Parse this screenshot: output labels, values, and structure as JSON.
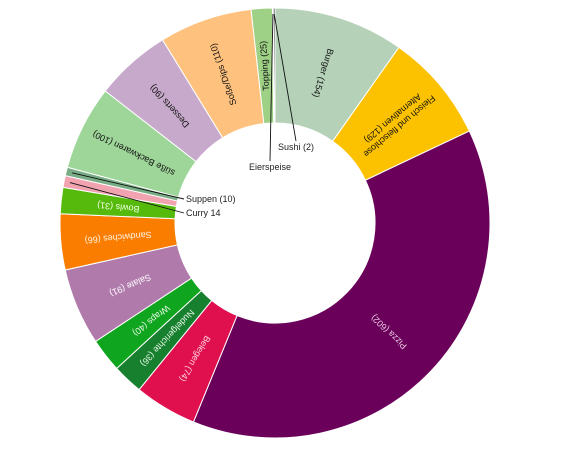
{
  "chart_data": {
    "type": "pie",
    "variant": "donut",
    "start": "top",
    "direction": "clockwise",
    "legend": "none",
    "title": "",
    "slices": [
      {
        "label": "Burger (154)",
        "name": "Burger",
        "value": 154,
        "color": "#b5d2b8",
        "text_color": "#111111",
        "label_style": "inside"
      },
      {
        "label": "Fleisch und fleischlose Alternativen (129)",
        "name": "Fleisch und fleischlose Alternativen",
        "value": 129,
        "color": "#fcc200",
        "text_color": "#111111",
        "label_style": "inside"
      },
      {
        "label": "Pizza (602)",
        "name": "Pizza",
        "value": 602,
        "color": "#6a005a",
        "text_color": "#e9c8e2",
        "label_style": "inside"
      },
      {
        "label": "Belegen (74)",
        "name": "Belegen",
        "value": 74,
        "color": "#e0104f",
        "text_color": "#ffd3de",
        "label_style": "inside"
      },
      {
        "label": "Nudelgerichte (36)",
        "name": "Nudelgerichte",
        "value": 36,
        "color": "#17802f",
        "text_color": "#e4f5e4",
        "label_style": "inside"
      },
      {
        "label": "Wraps (40)",
        "name": "Wraps",
        "value": 40,
        "color": "#10a51e",
        "text_color": "#e8f8e8",
        "label_style": "inside"
      },
      {
        "label": "Salate (91)",
        "name": "Salate",
        "value": 91,
        "color": "#b07aab",
        "text_color": "#ffffff",
        "label_style": "inside"
      },
      {
        "label": "Sandwiches (66)",
        "name": "Sandwiches",
        "value": 66,
        "color": "#fa7d00",
        "text_color": "#fff3e2",
        "label_style": "inside"
      },
      {
        "label": "Bowls (31)",
        "name": "Bowls",
        "value": 31,
        "color": "#56ba0c",
        "text_color": "#f2ffe5",
        "label_style": "inside"
      },
      {
        "label": "Curry 14",
        "name": "Curry",
        "value": 14,
        "color": "#f2a3b0",
        "text_color": "#222222",
        "label_style": "callout"
      },
      {
        "label": "Suppen (10)",
        "name": "Suppen",
        "value": 10,
        "color": "#79ad86",
        "text_color": "#222222",
        "label_style": "callout"
      },
      {
        "label": "süße Backwaren (100)",
        "name": "süße Backwaren",
        "value": 100,
        "color": "#9ed699",
        "text_color": "#111111",
        "label_style": "inside"
      },
      {
        "label": "Desserts (90)",
        "name": "Desserts",
        "value": 90,
        "color": "#c7a9cb",
        "text_color": "#111111",
        "label_style": "inside"
      },
      {
        "label": "Soße/Dips (110)",
        "name": "Soße/Dips",
        "value": 110,
        "color": "#ffc27e",
        "text_color": "#111111",
        "label_style": "inside"
      },
      {
        "label": "Topping (25)",
        "name": "Topping",
        "value": 25,
        "color": "#9ed085",
        "text_color": "#111111",
        "label_style": "inside"
      },
      {
        "label": "Eierspeise",
        "name": "Eierspeise",
        "value": 1,
        "color": "#2a2a2a",
        "text_color": "#222222",
        "label_style": "callout"
      },
      {
        "label": "Sushi (2)",
        "name": "Sushi",
        "value": 2,
        "color": "#3a3a3a",
        "text_color": "#222222",
        "label_style": "callout"
      }
    ]
  }
}
